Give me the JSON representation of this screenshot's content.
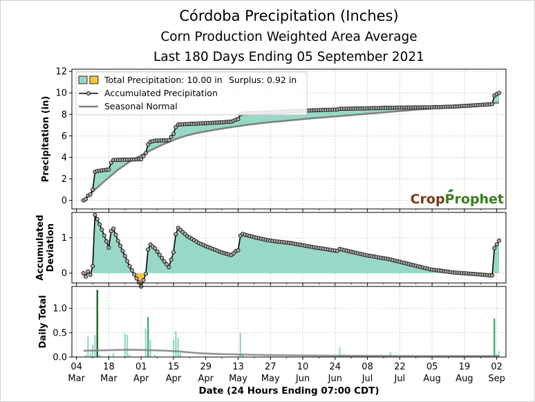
{
  "chart_data": {
    "type": "area",
    "title": "Córdoba Precipitation (Inches)",
    "subtitle1": "Corn Production Weighted Area Average",
    "subtitle2": "Last 180 Days Ending 05 September 2021",
    "xlabel": "Date (24 Hours Ending 07:00 CDT)",
    "brand_logo": {
      "crop": "Crop",
      "prophet": "Prophet"
    },
    "colors": {
      "surplus_fill": "#98d8c6",
      "deficit_fill": "#f6c343",
      "accum_line": "#000000",
      "accum_marker": "#aaaaaa",
      "normal_line": "#808080",
      "bar_light": "#98d8c6",
      "bar_mid": "#3cab6e",
      "bar_dark": "#0f5e2a",
      "logo_crop": "#7a3b12",
      "logo_prophet": "#3b7d22"
    },
    "x_days": 180,
    "x_ticks": [
      {
        "day": -3,
        "top": "04",
        "bottom": "Mar"
      },
      {
        "day": 11,
        "top": "18",
        "bottom": "Mar"
      },
      {
        "day": 25,
        "top": "01",
        "bottom": "Apr"
      },
      {
        "day": 39,
        "top": "15",
        "bottom": "Apr"
      },
      {
        "day": 53,
        "top": "29",
        "bottom": "Apr"
      },
      {
        "day": 67,
        "top": "13",
        "bottom": "May"
      },
      {
        "day": 81,
        "top": "27",
        "bottom": "May"
      },
      {
        "day": 95,
        "top": "10",
        "bottom": "Jun"
      },
      {
        "day": 109,
        "top": "24",
        "bottom": "Jun"
      },
      {
        "day": 123,
        "top": "08",
        "bottom": "Jul"
      },
      {
        "day": 137,
        "top": "22",
        "bottom": "Jul"
      },
      {
        "day": 151,
        "top": "05",
        "bottom": "Aug"
      },
      {
        "day": 165,
        "top": "19",
        "bottom": "Aug"
      },
      {
        "day": 179,
        "top": "02",
        "bottom": "Sep"
      }
    ],
    "panels": [
      {
        "ylabel": "Precipitation (in)",
        "ylim": [
          -0.8,
          12.2
        ],
        "yticks": [
          0,
          2,
          4,
          6,
          8,
          10,
          12
        ],
        "legend": {
          "total_label": "Total Precipitation: 10.00 in",
          "surplus_label": "Surplus: 0.92 in",
          "accum_label": "Accumulated Precipitation",
          "normal_label": "Seasonal Normal"
        }
      },
      {
        "ylabel_line1": "Accumulated",
        "ylabel_line2": "Deviation",
        "ylim": [
          -0.28,
          1.72
        ],
        "yticks": [
          0,
          1
        ]
      },
      {
        "ylabel": "Daily Total",
        "ylim": [
          0,
          1.45
        ],
        "yticks": [
          0.0,
          0.5,
          1.0
        ],
        "ytick_labels": [
          "0.0",
          "0.5",
          "1.0"
        ]
      }
    ],
    "series": {
      "accumulated_steps": [
        [
          0,
          0.0
        ],
        [
          1,
          0.1
        ],
        [
          2,
          0.45
        ],
        [
          3,
          0.55
        ],
        [
          4,
          1.0
        ],
        [
          5,
          2.65
        ],
        [
          6,
          2.72
        ],
        [
          8,
          2.8
        ],
        [
          10,
          2.85
        ],
        [
          11,
          2.85
        ],
        [
          12,
          3.5
        ],
        [
          13,
          3.75
        ],
        [
          17,
          3.78
        ],
        [
          22,
          3.8
        ],
        [
          25,
          3.82
        ],
        [
          27,
          4.4
        ],
        [
          28,
          5.2
        ],
        [
          29,
          5.45
        ],
        [
          31,
          5.55
        ],
        [
          37,
          5.6
        ],
        [
          39,
          6.2
        ],
        [
          40,
          6.8
        ],
        [
          41,
          7.05
        ],
        [
          45,
          7.1
        ],
        [
          53,
          7.18
        ],
        [
          59,
          7.25
        ],
        [
          64,
          7.32
        ],
        [
          65,
          7.4
        ],
        [
          66,
          7.5
        ],
        [
          67,
          7.55
        ],
        [
          68,
          8.0
        ],
        [
          69,
          8.08
        ],
        [
          74,
          8.12
        ],
        [
          82,
          8.2
        ],
        [
          90,
          8.3
        ],
        [
          100,
          8.38
        ],
        [
          110,
          8.45
        ],
        [
          111,
          8.52
        ],
        [
          122,
          8.55
        ],
        [
          133,
          8.62
        ],
        [
          150,
          8.65
        ],
        [
          160,
          8.72
        ],
        [
          170,
          8.85
        ],
        [
          177,
          8.95
        ],
        [
          178,
          9.75
        ],
        [
          180,
          10.0
        ]
      ],
      "normal_points": [
        [
          0,
          0.0
        ],
        [
          5,
          1.0
        ],
        [
          10,
          1.95
        ],
        [
          15,
          2.85
        ],
        [
          20,
          3.6
        ],
        [
          25,
          4.2
        ],
        [
          30,
          4.75
        ],
        [
          35,
          5.25
        ],
        [
          40,
          5.7
        ],
        [
          45,
          6.05
        ],
        [
          50,
          6.3
        ],
        [
          60,
          6.68
        ],
        [
          70,
          7.0
        ],
        [
          80,
          7.25
        ],
        [
          90,
          7.45
        ],
        [
          100,
          7.65
        ],
        [
          110,
          7.82
        ],
        [
          120,
          8.0
        ],
        [
          130,
          8.18
        ],
        [
          140,
          8.36
        ],
        [
          150,
          8.54
        ],
        [
          160,
          8.7
        ],
        [
          170,
          8.88
        ],
        [
          180,
          9.08
        ]
      ],
      "daily_bars": [
        [
          1,
          0.05,
          "light"
        ],
        [
          2,
          0.42,
          "light"
        ],
        [
          3,
          0.08,
          "light"
        ],
        [
          4,
          0.25,
          "light"
        ],
        [
          5,
          0.45,
          "light"
        ],
        [
          6,
          1.38,
          "dark"
        ],
        [
          7,
          0.05,
          "light"
        ],
        [
          11,
          0.05,
          "light"
        ],
        [
          13,
          0.08,
          "light"
        ],
        [
          18,
          0.48,
          "light"
        ],
        [
          19,
          0.45,
          "light"
        ],
        [
          20,
          0.05,
          "light"
        ],
        [
          27,
          0.58,
          "light"
        ],
        [
          28,
          0.82,
          "mid"
        ],
        [
          29,
          0.35,
          "light"
        ],
        [
          31,
          0.05,
          "light"
        ],
        [
          39,
          0.35,
          "light"
        ],
        [
          40,
          0.53,
          "light"
        ],
        [
          41,
          0.4,
          "light"
        ],
        [
          42,
          0.08,
          "light"
        ],
        [
          68,
          0.5,
          "light"
        ],
        [
          69,
          0.08,
          "light"
        ],
        [
          111,
          0.2,
          "light"
        ],
        [
          112,
          0.05,
          "light"
        ],
        [
          133,
          0.1,
          "light"
        ],
        [
          178,
          0.79,
          "mid"
        ],
        [
          179,
          0.05,
          "light"
        ],
        [
          180,
          0.12,
          "light"
        ]
      ],
      "daily_normal_points": [
        [
          0,
          0.13
        ],
        [
          10,
          0.14
        ],
        [
          20,
          0.15
        ],
        [
          30,
          0.14
        ],
        [
          40,
          0.12
        ],
        [
          50,
          0.08
        ],
        [
          60,
          0.06
        ],
        [
          70,
          0.05
        ],
        [
          80,
          0.04
        ],
        [
          90,
          0.035
        ],
        [
          100,
          0.03
        ],
        [
          120,
          0.025
        ],
        [
          140,
          0.02
        ],
        [
          160,
          0.02
        ],
        [
          180,
          0.02
        ]
      ]
    }
  }
}
